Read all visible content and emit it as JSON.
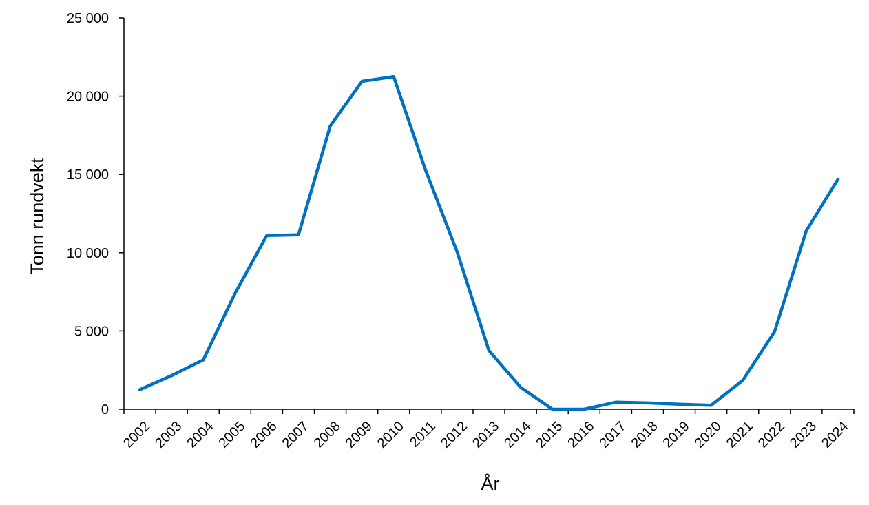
{
  "chart_data": {
    "type": "line",
    "title": "",
    "xlabel": "År",
    "ylabel": "Tonn rundvekt",
    "ylim": [
      0,
      25000
    ],
    "yticks": [
      0,
      5000,
      10000,
      15000,
      20000,
      25000
    ],
    "ytick_labels": [
      "0",
      "5 000",
      "10 000",
      "15 000",
      "20 000",
      "25 000"
    ],
    "grid": false,
    "legend": "none",
    "line_color": "#0070C0",
    "categories": [
      "2002",
      "2003",
      "2004",
      "2005",
      "2006",
      "2007",
      "2008",
      "2009",
      "2010",
      "2011",
      "2012",
      "2013",
      "2014",
      "2015",
      "2016",
      "2017",
      "2018",
      "2019",
      "2020",
      "2021",
      "2022",
      "2023",
      "2024"
    ],
    "series": [
      {
        "values": [
          1250,
          2150,
          3150,
          7400,
          11100,
          11150,
          18100,
          20950,
          21250,
          15300,
          10050,
          3750,
          1400,
          0,
          0,
          450,
          400,
          320,
          250,
          1850,
          4950,
          11400,
          14700
        ]
      }
    ]
  }
}
